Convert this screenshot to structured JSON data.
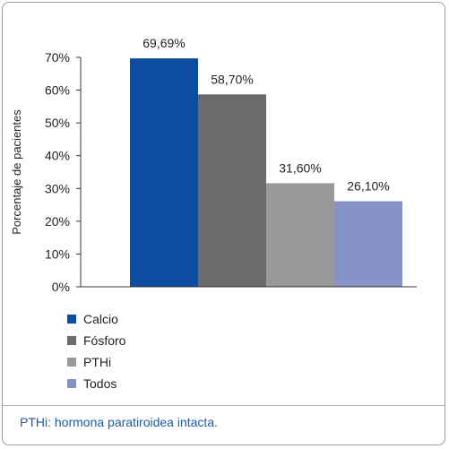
{
  "chart_data": {
    "type": "bar",
    "categories": [
      "Calcio",
      "Fósforo",
      "PTHi",
      "Todos"
    ],
    "values": [
      69.69,
      58.7,
      31.6,
      26.1
    ],
    "data_labels": [
      "69,69%",
      "58,70%",
      "31,60%",
      "26,10%"
    ],
    "colors": [
      "#0d4da1",
      "#6b6b6b",
      "#999999",
      "#8592c8"
    ],
    "ylabel": "Porcentaje de pacientes",
    "ylim": [
      0,
      70
    ],
    "yticks": [
      "0%",
      "10%",
      "20%",
      "30%",
      "40%",
      "50%",
      "60%",
      "70%"
    ],
    "grid": false,
    "legend_position": "bottom-left"
  },
  "footnote": "PTHi: hormona paratiroidea intacta."
}
